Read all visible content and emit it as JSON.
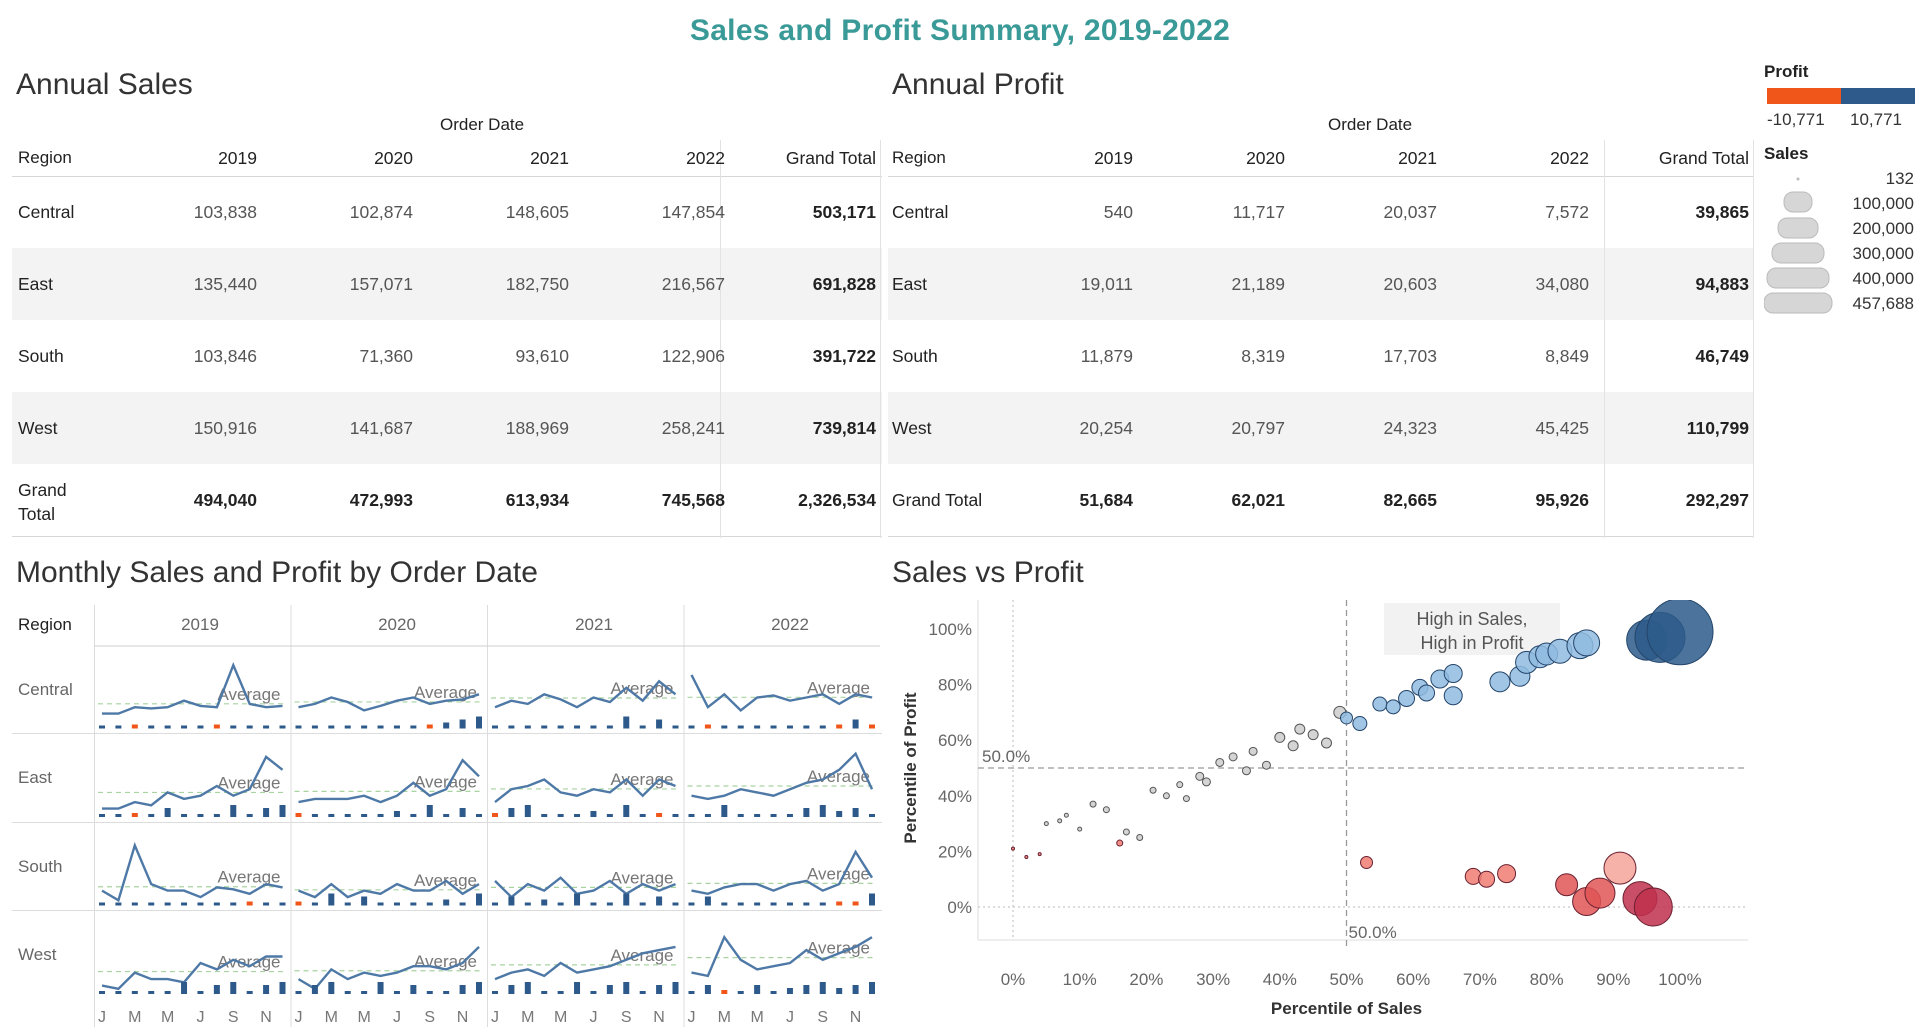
{
  "title": "Sales and Profit Summary, 2019-2022",
  "annual_sales": {
    "title": "Annual Sales",
    "header_group": "Order Date",
    "row_header": "Region",
    "columns": [
      "2019",
      "2020",
      "2021",
      "2022",
      "Grand Total"
    ],
    "rows": [
      {
        "region": "Central",
        "values": [
          "103,838",
          "102,874",
          "148,605",
          "147,854",
          "503,171"
        ]
      },
      {
        "region": "East",
        "values": [
          "135,440",
          "157,071",
          "182,750",
          "216,567",
          "691,828"
        ]
      },
      {
        "region": "South",
        "values": [
          "103,846",
          "71,360",
          "93,610",
          "122,906",
          "391,722"
        ]
      },
      {
        "region": "West",
        "values": [
          "150,916",
          "141,687",
          "188,969",
          "258,241",
          "739,814"
        ]
      }
    ],
    "total_row": {
      "region_line1": "Grand",
      "region_line2": "Total",
      "values": [
        "494,040",
        "472,993",
        "613,934",
        "745,568",
        "2,326,534"
      ]
    }
  },
  "annual_profit": {
    "title": "Annual Profit",
    "header_group": "Order Date",
    "row_header": "Region",
    "columns": [
      "2019",
      "2020",
      "2021",
      "2022",
      "Grand Total"
    ],
    "rows": [
      {
        "region": "Central",
        "values": [
          "540",
          "11,717",
          "20,037",
          "7,572",
          "39,865"
        ]
      },
      {
        "region": "East",
        "values": [
          "19,011",
          "21,189",
          "20,603",
          "34,080",
          "94,883"
        ]
      },
      {
        "region": "South",
        "values": [
          "11,879",
          "8,319",
          "17,703",
          "8,849",
          "46,749"
        ]
      },
      {
        "region": "West",
        "values": [
          "20,254",
          "20,797",
          "24,323",
          "45,425",
          "110,799"
        ]
      }
    ],
    "total_row": {
      "region": "Grand Total",
      "values": [
        "51,684",
        "62,021",
        "82,665",
        "95,926",
        "292,297"
      ]
    }
  },
  "legend": {
    "profit_title": "Profit",
    "profit_min": "-10,771",
    "profit_max": "10,771",
    "profit_neg_color": "#f0561a",
    "profit_pos_color": "#2d5a8a",
    "sales_title": "Sales",
    "sales_sizes": [
      "132",
      "100,000",
      "200,000",
      "300,000",
      "400,000",
      "457,688"
    ]
  },
  "monthly": {
    "title": "Monthly Sales and Profit by Order Date",
    "row_header": "Region",
    "years": [
      "2019",
      "2020",
      "2021",
      "2022"
    ],
    "regions": [
      "Central",
      "East",
      "South",
      "West"
    ],
    "month_ticks": [
      "J",
      "M",
      "M",
      "J",
      "S",
      "N"
    ],
    "average_label": "Average"
  },
  "scatter": {
    "title": "Sales vs Profit",
    "annotation_line1": "High in Sales,",
    "annotation_line2": "High in Profit",
    "ref_x_label": "50.0%",
    "ref_y_label": "50.0%",
    "xlabel": "Percentile of Sales",
    "ylabel": "Percentile of Profit",
    "x_ticks": [
      "0%",
      "10%",
      "20%",
      "30%",
      "40%",
      "50%",
      "60%",
      "70%",
      "80%",
      "90%",
      "100%"
    ],
    "y_ticks": [
      "0%",
      "20%",
      "40%",
      "60%",
      "80%",
      "100%"
    ]
  },
  "chart_data": [
    {
      "type": "line",
      "title": "Monthly Sales and Profit by Order Date",
      "note": "Monthly sales trend (line) and monthly profit (bars) per region, values read from a sparkline-style chart; relative 0-1 scale estimated",
      "series": [
        {
          "name": "Central",
          "values": [
            0.2,
            0.2,
            0.3,
            0.28,
            0.3,
            0.4,
            0.32,
            0.3,
            0.95,
            0.35,
            0.3,
            0.32,
            0.3,
            0.35,
            0.45,
            0.38,
            0.25,
            0.32,
            0.4,
            0.45,
            0.35,
            0.4,
            0.42,
            0.5,
            0.3,
            0.4,
            0.35,
            0.5,
            0.42,
            0.3,
            0.45,
            0.38,
            0.6,
            0.4,
            0.7,
            0.5,
            0.8,
            0.3,
            0.5,
            0.25,
            0.45,
            0.48,
            0.4,
            0.45,
            0.5,
            0.35,
            0.5,
            0.45
          ]
        },
        {
          "name": "East",
          "values": [
            0.1,
            0.1,
            0.2,
            0.15,
            0.35,
            0.25,
            0.3,
            0.45,
            0.3,
            0.4,
            0.9,
            0.7,
            0.2,
            0.25,
            0.25,
            0.25,
            0.3,
            0.2,
            0.3,
            0.5,
            0.3,
            0.4,
            0.85,
            0.6,
            0.2,
            0.4,
            0.45,
            0.55,
            0.35,
            0.3,
            0.4,
            0.35,
            0.55,
            0.3,
            0.55,
            0.45,
            0.3,
            0.25,
            0.3,
            0.4,
            0.35,
            0.3,
            0.4,
            0.5,
            0.55,
            0.7,
            0.95,
            0.4
          ]
        },
        {
          "name": "South",
          "values": [
            0.2,
            0.05,
            0.9,
            0.3,
            0.2,
            0.2,
            0.1,
            0.25,
            0.22,
            0.15,
            0.3,
            0.25,
            0.2,
            0.1,
            0.3,
            0.1,
            0.2,
            0.15,
            0.3,
            0.2,
            0.2,
            0.35,
            0.15,
            0.3,
            0.35,
            0.1,
            0.3,
            0.2,
            0.4,
            0.15,
            0.2,
            0.35,
            0.15,
            0.3,
            0.2,
            0.3,
            0.2,
            0.15,
            0.25,
            0.3,
            0.3,
            0.2,
            0.3,
            0.35,
            0.2,
            0.3,
            0.8,
            0.4
          ]
        },
        {
          "name": "West",
          "values": [
            0.1,
            0.05,
            0.3,
            0.2,
            0.2,
            0.15,
            0.45,
            0.35,
            0.5,
            0.4,
            0.55,
            0.55,
            0.2,
            0.05,
            0.35,
            0.2,
            0.3,
            0.25,
            0.3,
            0.4,
            0.4,
            0.35,
            0.45,
            0.7,
            0.2,
            0.3,
            0.35,
            0.25,
            0.45,
            0.3,
            0.35,
            0.4,
            0.5,
            0.6,
            0.65,
            0.7,
            0.3,
            0.25,
            0.85,
            0.5,
            0.35,
            0.4,
            0.45,
            0.65,
            0.5,
            0.6,
            0.7,
            0.85
          ]
        }
      ]
    },
    {
      "type": "scatter",
      "title": "Sales vs Profit",
      "xlabel": "Percentile of Sales",
      "ylabel": "Percentile of Profit",
      "xlim": [
        -5,
        105
      ],
      "ylim": [
        -8,
        110
      ],
      "points": [
        {
          "x": 0,
          "y": 21,
          "size": 1
        },
        {
          "x": 2,
          "y": 18,
          "size": 1
        },
        {
          "x": 4,
          "y": 19,
          "size": 1
        },
        {
          "x": 5,
          "y": 30,
          "size": 2
        },
        {
          "x": 7,
          "y": 31,
          "size": 2
        },
        {
          "x": 8,
          "y": 33,
          "size": 2
        },
        {
          "x": 10,
          "y": 28,
          "size": 2
        },
        {
          "x": 12,
          "y": 37,
          "size": 3
        },
        {
          "x": 14,
          "y": 35,
          "size": 3
        },
        {
          "x": 16,
          "y": 23,
          "size": 3
        },
        {
          "x": 17,
          "y": 27,
          "size": 3
        },
        {
          "x": 19,
          "y": 25,
          "size": 3
        },
        {
          "x": 21,
          "y": 42,
          "size": 3
        },
        {
          "x": 23,
          "y": 40,
          "size": 3
        },
        {
          "x": 25,
          "y": 44,
          "size": 3
        },
        {
          "x": 26,
          "y": 39,
          "size": 3
        },
        {
          "x": 28,
          "y": 47,
          "size": 4
        },
        {
          "x": 29,
          "y": 45,
          "size": 4
        },
        {
          "x": 31,
          "y": 52,
          "size": 4
        },
        {
          "x": 33,
          "y": 54,
          "size": 4
        },
        {
          "x": 35,
          "y": 49,
          "size": 4
        },
        {
          "x": 36,
          "y": 56,
          "size": 4
        },
        {
          "x": 38,
          "y": 51,
          "size": 4
        },
        {
          "x": 40,
          "y": 61,
          "size": 5
        },
        {
          "x": 42,
          "y": 58,
          "size": 5
        },
        {
          "x": 43,
          "y": 64,
          "size": 5
        },
        {
          "x": 45,
          "y": 62,
          "size": 5
        },
        {
          "x": 47,
          "y": 59,
          "size": 5
        },
        {
          "x": 49,
          "y": 70,
          "size": 6
        },
        {
          "x": 50,
          "y": 68,
          "size": 6
        },
        {
          "x": 52,
          "y": 66,
          "size": 7
        },
        {
          "x": 55,
          "y": 73,
          "size": 7
        },
        {
          "x": 57,
          "y": 72,
          "size": 7
        },
        {
          "x": 59,
          "y": 75,
          "size": 8
        },
        {
          "x": 61,
          "y": 79,
          "size": 8
        },
        {
          "x": 62,
          "y": 77,
          "size": 8
        },
        {
          "x": 64,
          "y": 82,
          "size": 9
        },
        {
          "x": 66,
          "y": 84,
          "size": 9
        },
        {
          "x": 66,
          "y": 76,
          "size": 9
        },
        {
          "x": 73,
          "y": 81,
          "size": 10
        },
        {
          "x": 76,
          "y": 83,
          "size": 10
        },
        {
          "x": 77,
          "y": 88,
          "size": 11
        },
        {
          "x": 79,
          "y": 90,
          "size": 11
        },
        {
          "x": 80,
          "y": 91,
          "size": 11
        },
        {
          "x": 82,
          "y": 92,
          "size": 12
        },
        {
          "x": 85,
          "y": 94,
          "size": 13
        },
        {
          "x": 86,
          "y": 95,
          "size": 13
        },
        {
          "x": 95,
          "y": 96,
          "size": 20
        },
        {
          "x": 97,
          "y": 97,
          "size": 25
        },
        {
          "x": 100,
          "y": 99,
          "size": 33
        },
        {
          "x": 53,
          "y": 16,
          "size": 6
        },
        {
          "x": 69,
          "y": 11,
          "size": 8
        },
        {
          "x": 71,
          "y": 10,
          "size": 8
        },
        {
          "x": 74,
          "y": 12,
          "size": 9
        },
        {
          "x": 83,
          "y": 8,
          "size": 11
        },
        {
          "x": 86,
          "y": 2,
          "size": 14
        },
        {
          "x": 88,
          "y": 5,
          "size": 15
        },
        {
          "x": 91,
          "y": 14,
          "size": 16
        },
        {
          "x": 94,
          "y": 3,
          "size": 17
        },
        {
          "x": 96,
          "y": 0,
          "size": 19
        }
      ]
    }
  ]
}
